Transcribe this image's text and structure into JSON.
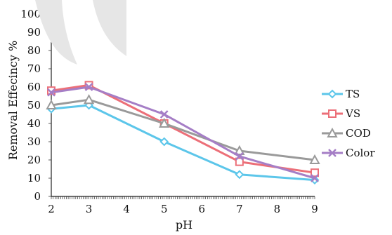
{
  "chart_data": {
    "type": "line",
    "xlabel": "pH",
    "ylabel": "Removal Effecincy %",
    "x": [
      2,
      3,
      5,
      7,
      9
    ],
    "xlim": [
      2,
      9
    ],
    "x_ticks": [
      "2",
      "3",
      "4",
      "5",
      "6",
      "7",
      "8",
      "9"
    ],
    "ylim": [
      0,
      100
    ],
    "y_ticks": [
      "0",
      "10",
      "20",
      "30",
      "40",
      "50",
      "60",
      "70",
      "80",
      "90",
      "100"
    ],
    "grid": false,
    "legend_position": "right",
    "series": [
      {
        "name": "TS",
        "values": [
          48,
          50,
          30,
          12,
          9
        ],
        "color": "#5cc6ea",
        "marker": "diamond"
      },
      {
        "name": "VS",
        "values": [
          58,
          61,
          40,
          19,
          13
        ],
        "color": "#ec6f78",
        "marker": "square"
      },
      {
        "name": "COD",
        "values": [
          50,
          53,
          40,
          25,
          20
        ],
        "color": "#9a9a9a",
        "marker": "triangle"
      },
      {
        "name": "Color",
        "values": [
          57,
          60,
          45,
          22,
          10
        ],
        "color": "#a57ec6",
        "marker": "x"
      }
    ]
  }
}
